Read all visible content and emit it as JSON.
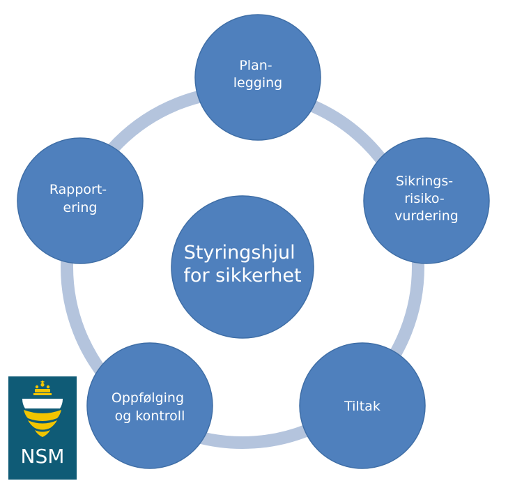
{
  "diagram": {
    "center": {
      "lines": [
        "Styringshjul",
        "for sikkerhet"
      ]
    },
    "nodes": [
      {
        "id": "planlegging",
        "lines": [
          "Plan-",
          "legging"
        ]
      },
      {
        "id": "sikringsrisikovurdering",
        "lines": [
          "Sikrings-",
          "risiko-",
          "vurdering"
        ]
      },
      {
        "id": "tiltak",
        "lines": [
          "Tiltak"
        ]
      },
      {
        "id": "oppfolging",
        "lines": [
          "Oppfølging",
          "og kontroll"
        ]
      },
      {
        "id": "rapportering",
        "lines": [
          "Rapport-",
          "ering"
        ]
      }
    ],
    "colors": {
      "circle": "#4f80bd",
      "circle_stroke": "#3f6ea6",
      "ring": "#b4c4dd"
    }
  },
  "logo": {
    "text": "NSM",
    "colors": {
      "background": "#0f5b76",
      "accent": "#f2c500"
    }
  }
}
